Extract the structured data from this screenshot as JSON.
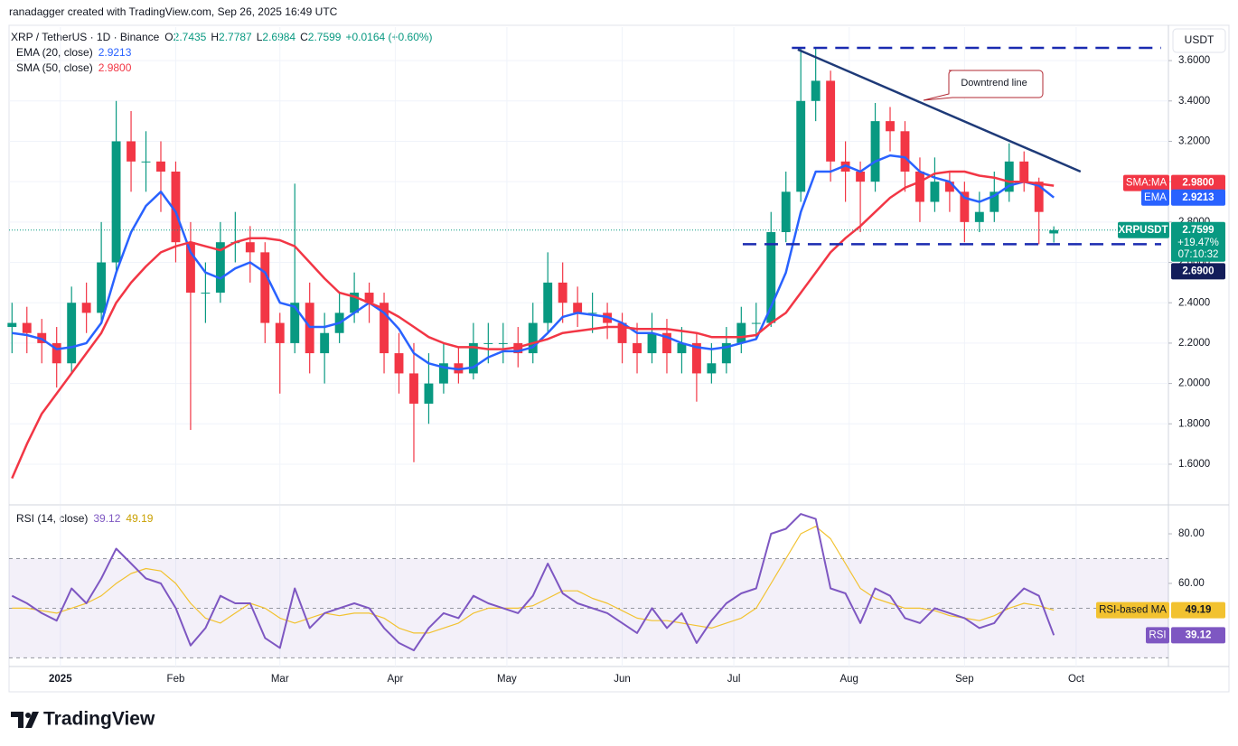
{
  "header": {
    "credit": "ranadagger created with TradingView.com, Sep 26, 2025 16:49 UTC",
    "symbol": "XRP / TetherUS · 1D · Binance",
    "ohlc_letters": [
      "O",
      "H",
      "L",
      "C"
    ],
    "change": "+0.0164 (+0.60%)",
    "brand": "TradingView"
  },
  "chart_data": [
    {
      "type": "candlestick",
      "currency": "USDT",
      "up_color": "#089981",
      "down_color": "#f23645",
      "open": [
        2.28,
        2.3,
        2.25,
        2.2,
        2.1,
        2.4,
        2.35,
        2.6,
        3.2,
        3.1,
        3.1,
        3.05,
        2.7,
        2.45,
        2.45,
        2.7,
        2.7,
        2.65,
        2.3,
        2.2,
        2.4,
        2.15,
        2.25,
        2.35,
        2.45,
        2.4,
        2.15,
        2.05,
        1.9,
        2.0,
        2.1,
        2.05,
        2.2,
        2.2,
        2.2,
        2.15,
        2.3,
        2.5,
        2.4,
        2.35,
        2.35,
        2.3,
        2.2,
        2.15,
        2.25,
        2.15,
        2.2,
        2.05,
        2.1,
        2.2,
        2.3,
        2.3,
        2.75,
        2.95,
        3.4,
        3.5,
        3.1,
        3.05,
        3.0,
        3.3,
        3.25,
        3.05,
        2.9,
        3.0,
        2.95,
        2.8,
        2.85,
        2.95,
        3.1,
        3.0,
        2.7435
      ],
      "high": [
        2.4,
        2.38,
        2.32,
        2.28,
        2.48,
        2.5,
        2.8,
        3.4,
        3.35,
        3.25,
        3.2,
        3.1,
        2.8,
        2.6,
        2.8,
        2.85,
        2.78,
        2.7,
        2.35,
        2.99,
        2.5,
        2.35,
        2.45,
        2.55,
        2.5,
        2.45,
        2.25,
        2.2,
        2.15,
        2.2,
        2.18,
        2.3,
        2.3,
        2.3,
        2.28,
        2.4,
        2.65,
        2.6,
        2.48,
        2.45,
        2.4,
        2.35,
        2.3,
        2.35,
        2.32,
        2.28,
        2.25,
        2.2,
        2.28,
        2.38,
        2.4,
        2.85,
        3.05,
        3.66,
        3.66,
        3.55,
        3.2,
        3.1,
        3.39,
        3.37,
        3.3,
        3.12,
        3.12,
        3.05,
        3.0,
        2.95,
        3.05,
        3.19,
        3.15,
        3.02,
        2.7787
      ],
      "low": [
        2.15,
        2.15,
        2.1,
        1.98,
        2.05,
        2.25,
        2.3,
        2.55,
        2.95,
        2.95,
        2.85,
        2.6,
        1.77,
        2.3,
        2.4,
        2.6,
        2.5,
        2.2,
        1.95,
        2.15,
        2.05,
        2.0,
        2.2,
        2.3,
        2.3,
        2.05,
        1.95,
        1.61,
        1.8,
        1.95,
        2.0,
        2.02,
        2.1,
        2.1,
        2.08,
        2.1,
        2.25,
        2.3,
        2.28,
        2.25,
        2.22,
        2.1,
        2.05,
        2.1,
        2.05,
        2.05,
        1.91,
        2.0,
        2.05,
        2.15,
        2.22,
        2.28,
        2.7,
        2.9,
        3.3,
        3.0,
        2.9,
        2.75,
        2.95,
        3.15,
        2.95,
        2.8,
        2.85,
        2.85,
        2.7,
        2.75,
        2.8,
        2.9,
        2.95,
        2.69,
        2.6984
      ],
      "close": [
        2.3,
        2.25,
        2.2,
        2.1,
        2.4,
        2.35,
        2.6,
        3.2,
        3.1,
        3.1,
        3.05,
        2.7,
        2.45,
        2.45,
        2.7,
        2.7,
        2.65,
        2.3,
        2.2,
        2.4,
        2.15,
        2.25,
        2.35,
        2.45,
        2.4,
        2.15,
        2.05,
        1.9,
        2.0,
        2.1,
        2.05,
        2.2,
        2.2,
        2.2,
        2.15,
        2.3,
        2.5,
        2.4,
        2.35,
        2.35,
        2.3,
        2.2,
        2.15,
        2.25,
        2.15,
        2.2,
        2.05,
        2.1,
        2.2,
        2.3,
        2.3,
        2.75,
        2.95,
        3.4,
        3.5,
        3.1,
        3.05,
        3.0,
        3.3,
        3.25,
        3.05,
        2.9,
        3.0,
        2.95,
        2.8,
        2.85,
        2.95,
        3.1,
        3.0,
        2.85,
        2.7599
      ],
      "series": [
        {
          "name": "EMA (20, close)",
          "tag": "EMA",
          "color": "#2962ff",
          "values": [
            2.25,
            2.24,
            2.22,
            2.17,
            2.18,
            2.2,
            2.3,
            2.55,
            2.75,
            2.88,
            2.95,
            2.85,
            2.65,
            2.55,
            2.52,
            2.57,
            2.6,
            2.55,
            2.4,
            2.38,
            2.28,
            2.28,
            2.3,
            2.35,
            2.4,
            2.35,
            2.27,
            2.15,
            2.1,
            2.08,
            2.07,
            2.08,
            2.13,
            2.16,
            2.16,
            2.18,
            2.25,
            2.33,
            2.35,
            2.34,
            2.33,
            2.3,
            2.25,
            2.25,
            2.23,
            2.2,
            2.18,
            2.17,
            2.18,
            2.2,
            2.22,
            2.38,
            2.55,
            2.85,
            3.05,
            3.05,
            3.08,
            3.05,
            3.1,
            3.13,
            3.12,
            3.05,
            3.02,
            3.0,
            2.92,
            2.9,
            2.93,
            2.98,
            3.0,
            2.98,
            2.9213
          ]
        },
        {
          "name": "SMA (50, close)",
          "tag": "SMA:MA",
          "color": "#f23645",
          "last_label": "2.9800",
          "values": [
            1.53,
            1.7,
            1.85,
            1.95,
            2.05,
            2.15,
            2.25,
            2.4,
            2.5,
            2.58,
            2.65,
            2.68,
            2.7,
            2.68,
            2.66,
            2.7,
            2.72,
            2.72,
            2.71,
            2.68,
            2.6,
            2.52,
            2.45,
            2.43,
            2.4,
            2.37,
            2.33,
            2.28,
            2.23,
            2.2,
            2.18,
            2.18,
            2.17,
            2.17,
            2.18,
            2.2,
            2.22,
            2.25,
            2.26,
            2.27,
            2.28,
            2.28,
            2.27,
            2.27,
            2.27,
            2.26,
            2.25,
            2.23,
            2.23,
            2.23,
            2.24,
            2.3,
            2.35,
            2.45,
            2.55,
            2.65,
            2.72,
            2.78,
            2.85,
            2.92,
            2.97,
            3.0,
            3.04,
            3.05,
            3.05,
            3.03,
            3.02,
            3.0,
            3.0,
            2.99,
            2.98
          ]
        }
      ],
      "last_price": {
        "symbol": "XRPUSDT",
        "change": "+19.47%",
        "countdown": "07:10:32",
        "color": "#089981"
      },
      "levels": [
        {
          "value": 3.663,
          "start": 52.4
        },
        {
          "value": 2.69,
          "start": 49.1,
          "label": "2.6900"
        }
      ],
      "level_color": "#1a2bb0",
      "trendline": {
        "x": [
          52.8,
          71.8
        ],
        "y": [
          3.655,
          3.05
        ],
        "color": "#1e3a78"
      },
      "callout": "Downtrend line",
      "xlim": [
        -0.2,
        77.7
      ],
      "xticks": [
        {
          "value": 3.25,
          "label": "2025"
        },
        {
          "value": 11,
          "label": "Feb"
        },
        {
          "value": 18,
          "label": "Mar"
        },
        {
          "value": 25.75,
          "label": "Apr"
        },
        {
          "value": 33.25,
          "label": "May"
        },
        {
          "value": 41,
          "label": "Jun"
        },
        {
          "value": 48.5,
          "label": "Jul"
        },
        {
          "value": 56.25,
          "label": "Aug"
        },
        {
          "value": 64,
          "label": "Sep"
        },
        {
          "value": 71.5,
          "label": "Oct"
        }
      ],
      "ylim": [
        1.403,
        3.766
      ],
      "yticks": [
        {
          "value": 1.6,
          "label": "1.6000"
        },
        {
          "value": 1.8,
          "label": "1.8000"
        },
        {
          "value": 2.0,
          "label": "2.0000"
        },
        {
          "value": 2.2,
          "label": "2.2000"
        },
        {
          "value": 2.4,
          "label": "2.4000"
        },
        {
          "value": 2.6,
          "label": "2.6000"
        },
        {
          "value": 2.8,
          "label": "2.8000"
        },
        {
          "value": 3.0,
          "label": "3.0000"
        },
        {
          "value": 3.2,
          "label": "3.2000"
        },
        {
          "value": 3.4,
          "label": "3.4000"
        },
        {
          "value": 3.6,
          "label": "3.6000"
        }
      ],
      "grid": true
    },
    {
      "type": "line",
      "title": "RSI (14, close)",
      "series": [
        {
          "name": "RSI",
          "color": "#7e57c2",
          "values": [
            55,
            52,
            48,
            45,
            58,
            52,
            62,
            74,
            68,
            62,
            60,
            50,
            35,
            42,
            55,
            52,
            52,
            38,
            34,
            58,
            42,
            48,
            50,
            52,
            50,
            42,
            36,
            33,
            42,
            48,
            46,
            55,
            52,
            50,
            48,
            55,
            68,
            56,
            52,
            50,
            48,
            44,
            40,
            50,
            42,
            48,
            36,
            45,
            52,
            56,
            58,
            80,
            82,
            88,
            86,
            58,
            56,
            44,
            58,
            55,
            46,
            44,
            50,
            48,
            46,
            42,
            44,
            52,
            58,
            55,
            39.12
          ]
        },
        {
          "name": "RSI-based MA",
          "color": "#f2c230",
          "values": [
            50,
            50,
            49,
            48,
            50,
            52,
            55,
            60,
            64,
            66,
            65,
            60,
            52,
            46,
            44,
            48,
            52,
            50,
            46,
            44,
            46,
            48,
            47,
            48,
            48,
            46,
            42,
            40,
            40,
            42,
            44,
            48,
            50,
            50,
            50,
            51,
            54,
            57,
            57,
            54,
            52,
            49,
            46,
            45,
            45,
            44,
            43,
            42,
            44,
            46,
            50,
            60,
            70,
            80,
            83,
            78,
            68,
            58,
            54,
            52,
            50,
            50,
            49,
            47,
            46,
            45,
            47,
            50,
            52,
            51,
            49.19
          ]
        }
      ],
      "bands": [
        30,
        50,
        70
      ],
      "ylim": [
        26.5,
        91.3
      ],
      "yticks": [
        {
          "value": 60,
          "label": "60.00"
        },
        {
          "value": 80,
          "label": "80.00"
        }
      ]
    }
  ]
}
